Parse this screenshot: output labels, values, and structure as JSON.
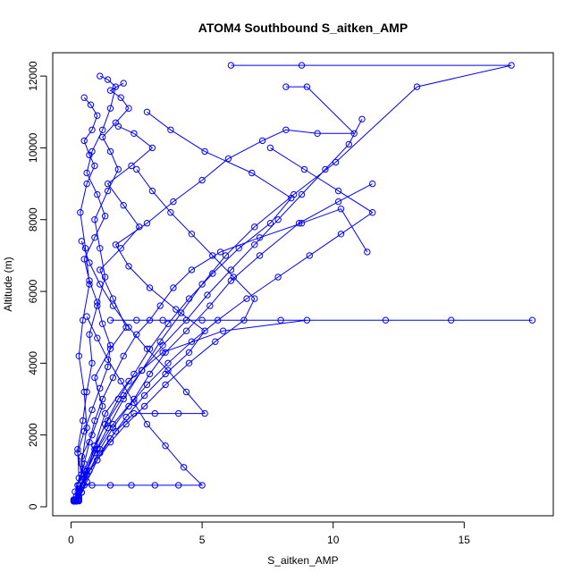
{
  "chart_data": {
    "type": "line",
    "title": "ATOM4 Southbound S_aitken_AMP",
    "xlabel": "S_aitken_AMP",
    "ylabel": "Altitude (m)",
    "xlim": [
      -0.7,
      18.4
    ],
    "ylim": [
      -250,
      12650
    ],
    "xticks": [
      0,
      5,
      10,
      15
    ],
    "yticks": [
      0,
      2000,
      4000,
      6000,
      8000,
      10000,
      12000
    ],
    "grid": false,
    "marker": "open-circle",
    "color": "#0000ff",
    "series": [
      {
        "x": [
          0.2,
          0.3,
          0.15,
          0.4,
          0.25,
          0.5,
          0.8,
          1.1,
          1.4,
          1.5,
          1.2,
          1.0,
          0.7,
          0.5,
          0.9,
          1.3,
          1.0,
          0.6,
          0.8,
          1.2,
          1.5,
          1.7,
          1.4,
          1.1
        ],
        "y": [
          150,
          180,
          420,
          900,
          1500,
          2100,
          2700,
          3300,
          3900,
          4500,
          5100,
          5700,
          6300,
          6900,
          7500,
          8100,
          8700,
          9300,
          9900,
          10500,
          11100,
          11700,
          11900,
          12000
        ]
      },
      {
        "x": [
          0.1,
          0.2,
          0.35,
          0.6,
          1.0,
          1.6,
          2.4,
          3.0,
          3.6,
          4.4,
          5.3,
          6.1,
          7.2,
          8.7,
          10.2,
          11.5
        ],
        "y": [
          150,
          200,
          500,
          1000,
          1600,
          2300,
          3000,
          3700,
          4300,
          4900,
          5600,
          6300,
          7000,
          7900,
          8500,
          9000
        ]
      },
      {
        "x": [
          0.2,
          0.3,
          0.25,
          0.5,
          0.7,
          0.9,
          1.2,
          1.6,
          2.0,
          2.5,
          3.0,
          3.4,
          3.9,
          4.6,
          5.7,
          7.2,
          8.8,
          10.3,
          11.3
        ],
        "y": [
          200,
          250,
          600,
          1200,
          1800,
          2400,
          3000,
          3600,
          4200,
          4800,
          5200,
          5600,
          6100,
          6600,
          7100,
          7500,
          7900,
          8300,
          7100
        ]
      },
      {
        "x": [
          0.15,
          0.3,
          0.5,
          0.9,
          1.4,
          2.0,
          2.7,
          3.4,
          4.2,
          5.0,
          5.9,
          7.0,
          8.5,
          10.1,
          13.2,
          16.8,
          8.8,
          6.1
        ],
        "y": [
          160,
          300,
          800,
          1500,
          2200,
          3000,
          3800,
          4600,
          5400,
          6200,
          7000,
          7800,
          8700,
          9600,
          11700,
          12300,
          12300,
          12300
        ]
      },
      {
        "x": [
          0.2,
          0.4,
          0.6,
          0.9,
          1.3,
          2.2,
          3.5,
          5.8,
          9.0,
          14.5,
          17.6,
          12.0,
          8.0,
          5.0,
          3.5,
          2.5,
          1.5
        ],
        "y": [
          170,
          400,
          900,
          1700,
          2600,
          3500,
          4300,
          4900,
          5200,
          5200,
          5200,
          5200,
          5200,
          5200,
          5200,
          5200,
          5200
        ]
      },
      {
        "x": [
          0.3,
          0.6,
          1.0,
          1.5,
          2.1,
          2.8,
          3.6,
          4.5,
          5.1,
          4.0,
          3.0,
          2.2,
          1.7,
          2.9,
          3.9,
          5.0,
          6.0,
          7.3,
          8.2,
          9.4,
          10.8,
          9.0,
          8.2
        ],
        "y": [
          200,
          700,
          1300,
          1900,
          2500,
          3100,
          3700,
          4300,
          4900,
          5500,
          6100,
          6700,
          7300,
          7900,
          8500,
          9100,
          9700,
          10200,
          10500,
          10400,
          10400,
          11700,
          11700
        ]
      },
      {
        "x": [
          0.25,
          0.5,
          0.4,
          0.8,
          1.2,
          0.9,
          1.5,
          2.1,
          1.6,
          1.1,
          1.9,
          2.6,
          2.0,
          1.4,
          2.3,
          3.1,
          2.4,
          1.8
        ],
        "y": [
          180,
          600,
          1400,
          2000,
          2800,
          3600,
          4400,
          5000,
          5800,
          6600,
          7200,
          7800,
          8400,
          9000,
          9500,
          10000,
          10400,
          10600
        ]
      },
      {
        "x": [
          0.1,
          0.15,
          0.3,
          0.25,
          0.45,
          0.6,
          0.8,
          0.7,
          1.0,
          1.3,
          1.1,
          0.9,
          1.4,
          1.8,
          1.5,
          1.2,
          1.7,
          2.2,
          1.9,
          1.5,
          2.0
        ],
        "y": [
          180,
          200,
          800,
          1600,
          2400,
          3200,
          4000,
          4800,
          5600,
          6400,
          7200,
          8000,
          8800,
          9400,
          9900,
          10300,
          10700,
          11100,
          11400,
          11600,
          11800
        ]
      },
      {
        "x": [
          0.3,
          0.8,
          1.5,
          2.3,
          3.2,
          4.1,
          5.0,
          4.3,
          3.6,
          2.9,
          2.4,
          1.9,
          1.4,
          1.0,
          0.6
        ],
        "y": [
          600,
          600,
          600,
          600,
          600,
          600,
          600,
          1100,
          1700,
          2300,
          2900,
          3500,
          4100,
          4700,
          5300
        ]
      },
      {
        "x": [
          0.2,
          0.6,
          1.1,
          1.7,
          2.4,
          3.2,
          4.1,
          5.1,
          4.4,
          3.7,
          2.9,
          2.2,
          1.6,
          1.1,
          0.7,
          0.4
        ],
        "y": [
          300,
          900,
          1500,
          2100,
          2600,
          2600,
          2600,
          2600,
          3200,
          3800,
          4400,
          5000,
          5600,
          6200,
          6800,
          7400
        ]
      },
      {
        "x": [
          0.5,
          0.9,
          1.4,
          2.0,
          2.7,
          3.5,
          4.4,
          5.2,
          6.1,
          7.0,
          7.9,
          8.8,
          9.7,
          10.6,
          11.1
        ],
        "y": [
          1000,
          1700,
          2400,
          3100,
          3800,
          4500,
          5200,
          5900,
          6600,
          7300,
          8000,
          8700,
          9400,
          10100,
          10800
        ]
      },
      {
        "x": [
          0.3,
          0.4,
          0.6,
          0.5,
          0.3,
          0.45,
          0.7,
          0.55,
          0.35,
          0.6,
          0.9,
          0.7,
          0.5,
          0.8,
          1.0,
          0.75,
          0.5
        ],
        "y": [
          160,
          1200,
          2200,
          3200,
          4200,
          5200,
          6200,
          7200,
          8200,
          9000,
          9500,
          9800,
          10200,
          10500,
          10900,
          11200,
          11400
        ]
      },
      {
        "x": [
          0.2,
          0.5,
          0.9,
          1.3,
          1.8,
          2.4,
          3.0,
          3.7,
          4.5,
          5.4,
          6.4,
          7.6,
          8.4,
          6.9,
          5.1,
          3.8,
          2.9
        ],
        "y": [
          200,
          900,
          1600,
          2300,
          3000,
          3700,
          4400,
          5100,
          5800,
          6500,
          7200,
          7900,
          8600,
          9300,
          9900,
          10500,
          11000
        ]
      },
      {
        "x": [
          0.1,
          0.3,
          0.6,
          1.0,
          1.5,
          2.1,
          2.8,
          3.6,
          4.5,
          5.5,
          6.6,
          7.0,
          6.2,
          5.4,
          4.6,
          3.8,
          3.1,
          2.5
        ],
        "y": [
          200,
          500,
          900,
          1300,
          1800,
          2300,
          2800,
          3400,
          4000,
          4600,
          5200,
          5800,
          6400,
          7000,
          7600,
          8200,
          8800,
          9400
        ]
      },
      {
        "x": [
          0.4,
          0.7,
          1.1,
          1.6,
          2.2,
          2.9,
          3.7,
          4.6,
          5.6,
          6.7,
          7.9,
          9.1,
          10.3,
          11.5,
          10.2,
          8.9,
          7.6
        ],
        "y": [
          400,
          1000,
          1600,
          2200,
          2800,
          3400,
          4000,
          4600,
          5200,
          5800,
          6400,
          7000,
          7600,
          8200,
          8800,
          9400,
          10000
        ]
      }
    ]
  }
}
